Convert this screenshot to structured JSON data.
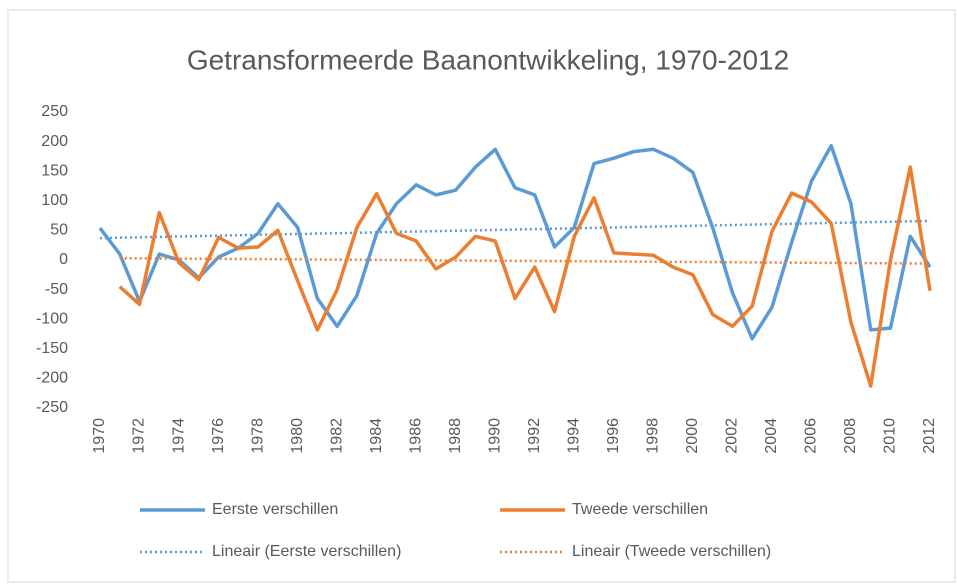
{
  "chart_data": {
    "type": "line",
    "title": "Getransformeerde  Baanontwikkeling, 1970-2012",
    "categories": [
      "1970",
      null,
      "1972",
      null,
      "1974",
      null,
      "1976",
      null,
      "1978",
      null,
      "1980",
      null,
      "1982",
      null,
      "1984",
      null,
      "1986",
      null,
      "1988",
      null,
      "1990",
      null,
      "1992",
      null,
      "1994",
      null,
      "1996",
      null,
      "1998",
      null,
      "2000",
      null,
      "2002",
      null,
      "2004",
      null,
      "2006",
      null,
      "2008",
      null,
      "2010",
      null,
      "2012"
    ],
    "series": [
      {
        "name": "Eerste verschillen",
        "color": "#5b9bd5",
        "values": [
          54,
          10,
          -70,
          10,
          0,
          -30,
          5,
          20,
          45,
          95,
          55,
          -65,
          -112,
          -60,
          45,
          95,
          127,
          110,
          118,
          157,
          187,
          122,
          110,
          22,
          55,
          163,
          172,
          183,
          187,
          172,
          148,
          55,
          -55,
          -133,
          -80,
          30,
          133,
          193,
          95,
          -118,
          -115,
          40,
          -12
        ],
        "trend": {
          "name": "Lineair (Eerste verschillen)",
          "values": [
            37,
            66
          ]
        }
      },
      {
        "name": "Tweede verschillen",
        "color": "#ed7d31",
        "values": [
          null,
          -45,
          -75,
          80,
          -5,
          -33,
          38,
          20,
          22,
          50,
          -35,
          -118,
          -50,
          55,
          112,
          45,
          32,
          -15,
          5,
          40,
          32,
          -65,
          -12,
          -87,
          40,
          105,
          12,
          10,
          8,
          -12,
          -25,
          -92,
          -112,
          -78,
          48,
          113,
          98,
          62,
          -105,
          -213,
          0,
          157,
          -52
        ],
        "trend": {
          "name": "Lineair (Tweede verschillen)",
          "values": [
            3,
            -6
          ]
        }
      }
    ],
    "ylim": [
      -250,
      250
    ],
    "yticks": [
      -250,
      -200,
      -150,
      -100,
      -50,
      0,
      50,
      100,
      150,
      200,
      250
    ],
    "grid": false
  }
}
